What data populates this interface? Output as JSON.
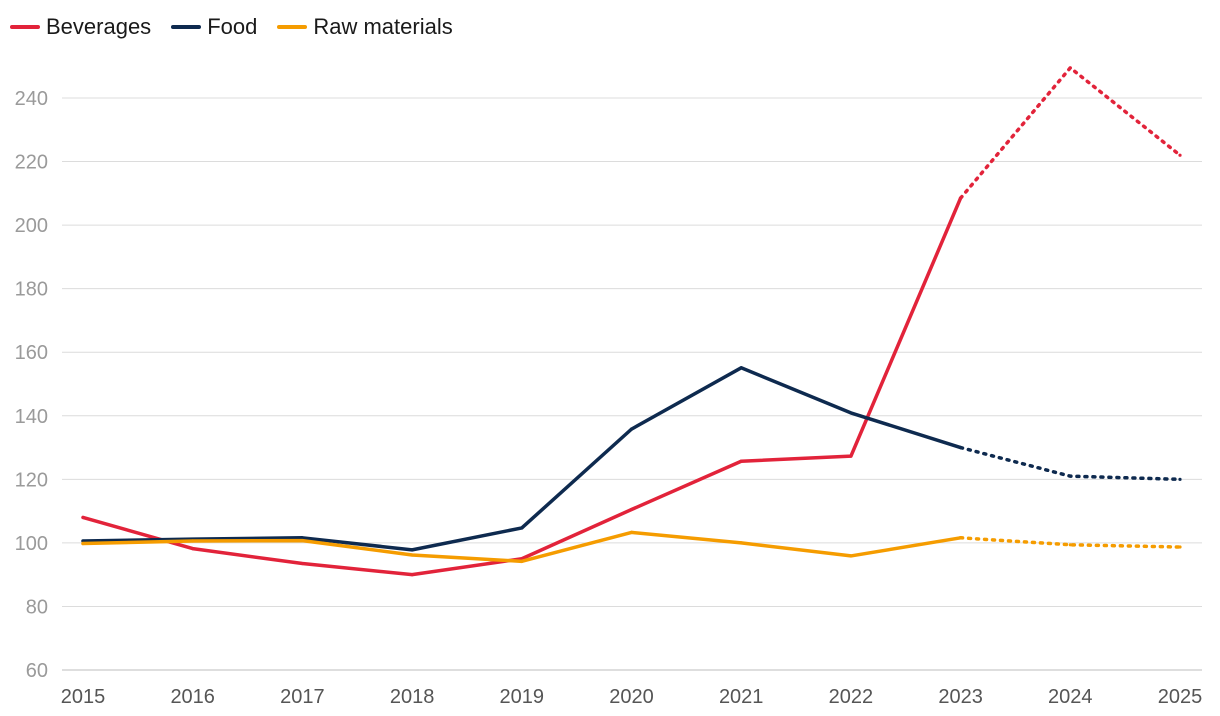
{
  "chart_data": {
    "type": "line",
    "title": "",
    "xlabel": "",
    "ylabel": "",
    "x": [
      "2015",
      "2016",
      "2017",
      "2018",
      "2019",
      "2020",
      "2021",
      "2022",
      "2023",
      "2024",
      "2025"
    ],
    "ylim": [
      60,
      250
    ],
    "yticks": [
      60,
      80,
      100,
      120,
      140,
      160,
      180,
      200,
      220,
      240
    ],
    "grid": true,
    "legend_position": "top-left",
    "forecast_from": "2023",
    "series": [
      {
        "name": "Beverages",
        "color": "#e2233a",
        "values": [
          108,
          98.2,
          93.5,
          90,
          95,
          110.5,
          125.7,
          127.3,
          208.5,
          249.5,
          222
        ]
      },
      {
        "name": "Food",
        "color": "#0e2a4f",
        "values": [
          100.6,
          101.2,
          101.6,
          97.8,
          104.7,
          135.8,
          155.1,
          140.9,
          130,
          121,
          120
        ]
      },
      {
        "name": "Raw materials",
        "color": "#f59c00",
        "values": [
          99.8,
          100.6,
          100.7,
          96.2,
          94.2,
          103.3,
          100,
          95.9,
          101.6,
          99.4,
          98.7
        ]
      }
    ]
  }
}
